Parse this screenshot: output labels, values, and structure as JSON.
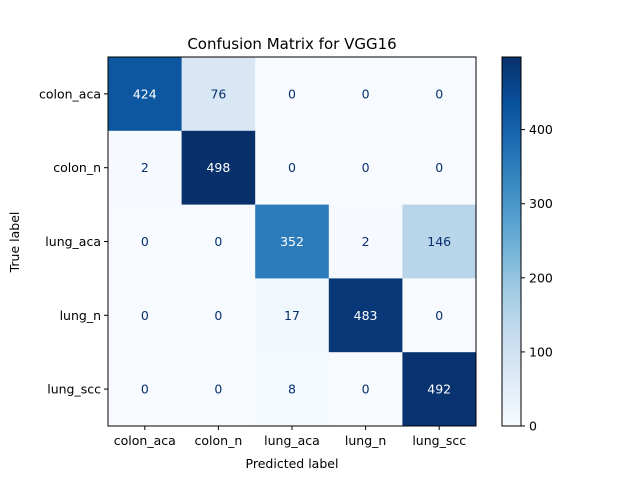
{
  "chart_data": {
    "type": "heatmap",
    "title": "Confusion Matrix for VGG16",
    "xlabel": "Predicted label",
    "ylabel": "True label",
    "x_categories": [
      "colon_aca",
      "colon_n",
      "lung_aca",
      "lung_n",
      "lung_scc"
    ],
    "y_categories": [
      "colon_aca",
      "colon_n",
      "lung_aca",
      "lung_n",
      "lung_scc"
    ],
    "matrix": [
      [
        424,
        76,
        0,
        0,
        0
      ],
      [
        2,
        498,
        0,
        0,
        0
      ],
      [
        0,
        0,
        352,
        2,
        146
      ],
      [
        0,
        0,
        17,
        483,
        0
      ],
      [
        0,
        0,
        8,
        0,
        492
      ]
    ],
    "colormap": "Blues",
    "colormap_stops": [
      "#f7fbff",
      "#deebf7",
      "#c6dbef",
      "#9ecae1",
      "#6baed6",
      "#4292c6",
      "#2171b5",
      "#08519c",
      "#08306b"
    ],
    "text_color_light_bg": "#08306b",
    "text_color_dark_bg": "#ffffff",
    "colorbar": {
      "range": [
        0,
        498
      ],
      "ticks": [
        "0",
        "100",
        "200",
        "300",
        "400"
      ]
    },
    "grid": false
  }
}
